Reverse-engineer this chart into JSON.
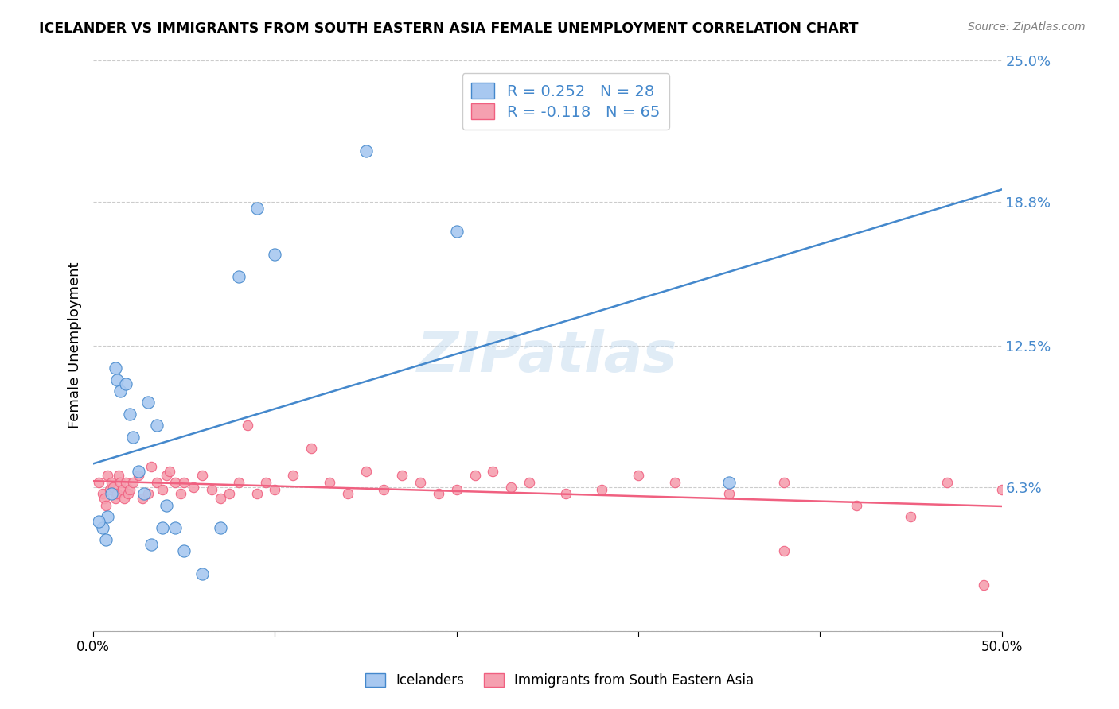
{
  "title": "ICELANDER VS IMMIGRANTS FROM SOUTH EASTERN ASIA FEMALE UNEMPLOYMENT CORRELATION CHART",
  "source": "Source: ZipAtlas.com",
  "ylabel": "Female Unemployment",
  "xlim": [
    0.0,
    0.5
  ],
  "ylim": [
    0.0,
    0.25
  ],
  "yticks": [
    0.0,
    0.063,
    0.125,
    0.188,
    0.25
  ],
  "ytick_labels": [
    "",
    "6.3%",
    "12.5%",
    "18.8%",
    "25.0%"
  ],
  "xticks": [
    0.0,
    0.1,
    0.2,
    0.3,
    0.4,
    0.5
  ],
  "xtick_labels": [
    "0.0%",
    "",
    "",
    "",
    "",
    "50.0%"
  ],
  "blue_R": 0.252,
  "blue_N": 28,
  "pink_R": -0.118,
  "pink_N": 65,
  "legend_label_blue": "Icelanders",
  "legend_label_pink": "Immigrants from South Eastern Asia",
  "blue_color": "#a8c8f0",
  "pink_color": "#f5a0b0",
  "blue_line_color": "#4488cc",
  "pink_line_color": "#f06080",
  "watermark": "ZIPatlas",
  "blue_scatter_x": [
    0.005,
    0.008,
    0.01,
    0.012,
    0.013,
    0.015,
    0.018,
    0.02,
    0.022,
    0.025,
    0.028,
    0.03,
    0.035,
    0.038,
    0.04,
    0.045,
    0.05,
    0.06,
    0.07,
    0.08,
    0.09,
    0.1,
    0.15,
    0.2,
    0.35,
    0.003,
    0.007,
    0.032
  ],
  "blue_scatter_y": [
    0.045,
    0.05,
    0.06,
    0.115,
    0.11,
    0.105,
    0.108,
    0.095,
    0.085,
    0.07,
    0.06,
    0.1,
    0.09,
    0.045,
    0.055,
    0.045,
    0.035,
    0.025,
    0.045,
    0.155,
    0.185,
    0.165,
    0.21,
    0.175,
    0.065,
    0.048,
    0.04,
    0.038
  ],
  "pink_scatter_x": [
    0.003,
    0.005,
    0.006,
    0.007,
    0.008,
    0.009,
    0.01,
    0.011,
    0.012,
    0.013,
    0.014,
    0.015,
    0.016,
    0.017,
    0.018,
    0.019,
    0.02,
    0.022,
    0.025,
    0.027,
    0.03,
    0.032,
    0.035,
    0.038,
    0.04,
    0.042,
    0.045,
    0.048,
    0.05,
    0.055,
    0.06,
    0.065,
    0.07,
    0.075,
    0.08,
    0.085,
    0.09,
    0.095,
    0.1,
    0.11,
    0.12,
    0.13,
    0.14,
    0.15,
    0.16,
    0.17,
    0.18,
    0.19,
    0.2,
    0.21,
    0.22,
    0.23,
    0.24,
    0.26,
    0.28,
    0.3,
    0.32,
    0.35,
    0.38,
    0.42,
    0.45,
    0.47,
    0.5,
    0.38,
    0.49
  ],
  "pink_scatter_y": [
    0.065,
    0.06,
    0.058,
    0.055,
    0.068,
    0.062,
    0.065,
    0.063,
    0.058,
    0.06,
    0.068,
    0.065,
    0.062,
    0.058,
    0.065,
    0.06,
    0.062,
    0.065,
    0.068,
    0.058,
    0.06,
    0.072,
    0.065,
    0.062,
    0.068,
    0.07,
    0.065,
    0.06,
    0.065,
    0.063,
    0.068,
    0.062,
    0.058,
    0.06,
    0.065,
    0.09,
    0.06,
    0.065,
    0.062,
    0.068,
    0.08,
    0.065,
    0.06,
    0.07,
    0.062,
    0.068,
    0.065,
    0.06,
    0.062,
    0.068,
    0.07,
    0.063,
    0.065,
    0.06,
    0.062,
    0.068,
    0.065,
    0.06,
    0.065,
    0.055,
    0.05,
    0.065,
    0.062,
    0.035,
    0.02
  ]
}
